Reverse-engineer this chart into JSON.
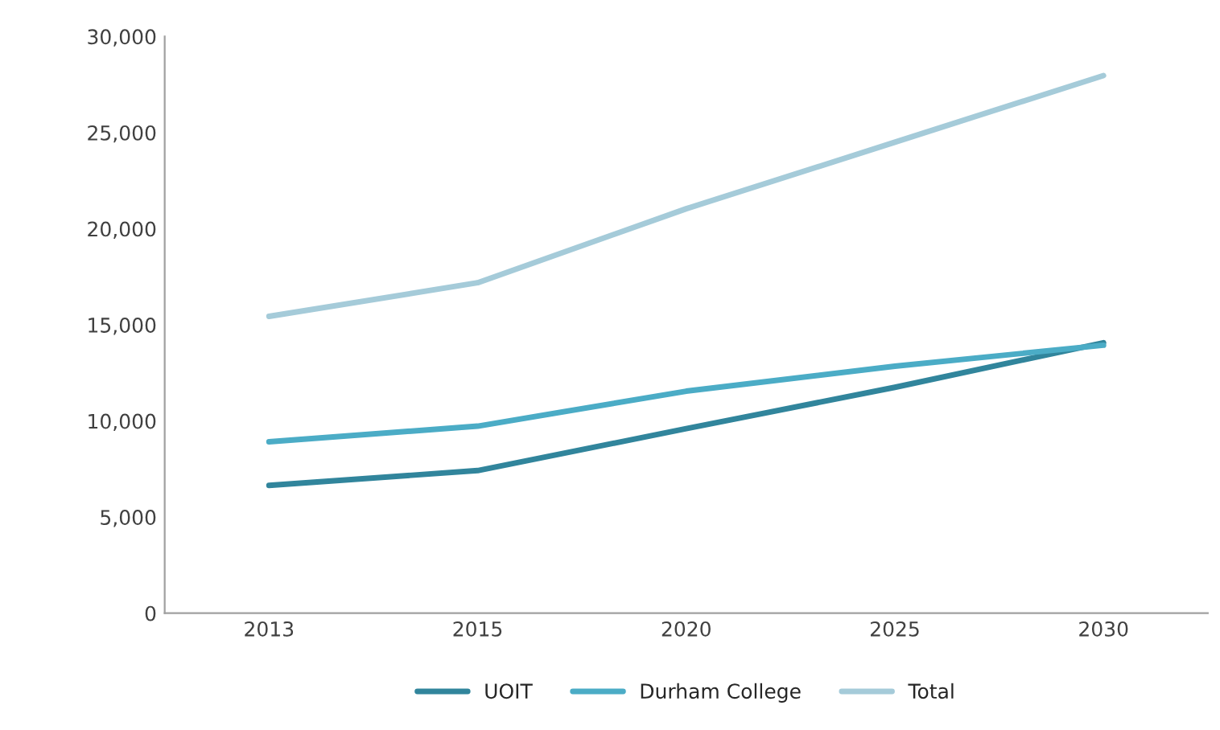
{
  "chart_data": {
    "type": "line",
    "categories": [
      "2013",
      "2015",
      "2020",
      "2025",
      "2030"
    ],
    "series": [
      {
        "name": "UOIT",
        "color": "#31859c",
        "values": [
          6650,
          7420,
          9600,
          11750,
          14070
        ]
      },
      {
        "name": "Durham College",
        "color": "#4bacc6",
        "values": [
          8920,
          9730,
          11550,
          12850,
          13940
        ]
      },
      {
        "name": "Total",
        "color": "#a5cbd9",
        "values": [
          15440,
          17190,
          21040,
          24500,
          27970
        ]
      }
    ],
    "ylim": [
      0,
      30000
    ],
    "yticks": [
      {
        "value": 0,
        "label": "0"
      },
      {
        "value": 5000,
        "label": "5,000"
      },
      {
        "value": 10000,
        "label": "10,000"
      },
      {
        "value": 15000,
        "label": "15,000"
      },
      {
        "value": 20000,
        "label": "20,000"
      },
      {
        "value": 25000,
        "label": "25,000"
      },
      {
        "value": 30000,
        "label": "30,000"
      }
    ],
    "grid": false,
    "legend": "bottom",
    "marker": "none",
    "line_style": "solid"
  }
}
